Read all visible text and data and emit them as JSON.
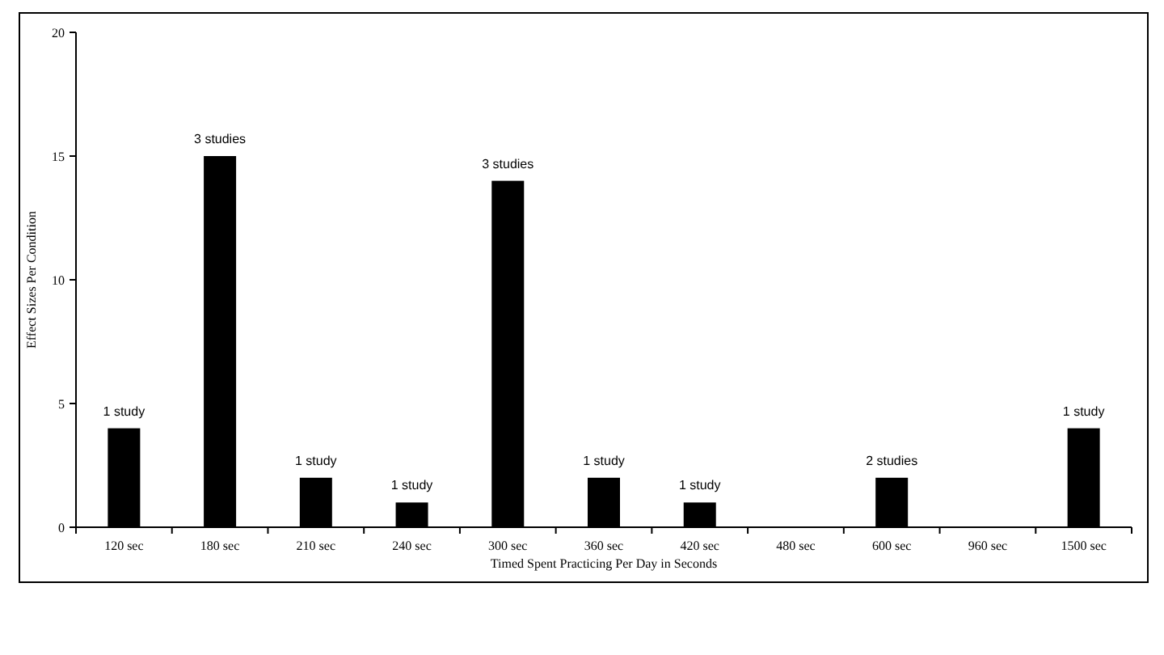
{
  "chart_data": {
    "type": "bar",
    "xlabel": "Timed Spent Practicing Per Day in Seconds",
    "ylabel": "Effect Sizes Per Condition",
    "categories": [
      "120 sec",
      "180 sec",
      "210 sec",
      "240 sec",
      "300 sec",
      "360 sec",
      "420 sec",
      "480 sec",
      "600 sec",
      "960 sec",
      "1500 sec"
    ],
    "values": [
      4,
      15,
      2,
      1,
      14,
      2,
      1,
      null,
      2,
      null,
      4
    ],
    "annotations": [
      {
        "text": "1 study",
        "x": "120 sec",
        "y": 4
      },
      {
        "text": "3 studies",
        "x": "180 sec",
        "y": 15
      },
      {
        "text": "1 study",
        "x": "210 sec",
        "y": 2
      },
      {
        "text": "1 study",
        "x": "240 sec",
        "y": 1
      },
      {
        "text": "3 studies",
        "x": "300 sec",
        "y": 14
      },
      {
        "text": "1 study",
        "x": "360 sec",
        "y": 2
      },
      {
        "text": "1 study",
        "x": "420 sec",
        "y": 1
      },
      {
        "text": "2 studies",
        "x": "600 sec",
        "y": 2
      },
      {
        "text": "1 study",
        "x": "1500 sec",
        "y": 4
      }
    ],
    "color": "#000000",
    "ylim": [
      0,
      20
    ],
    "yticks": [
      0,
      5,
      10,
      15,
      20
    ],
    "grid": false
  }
}
